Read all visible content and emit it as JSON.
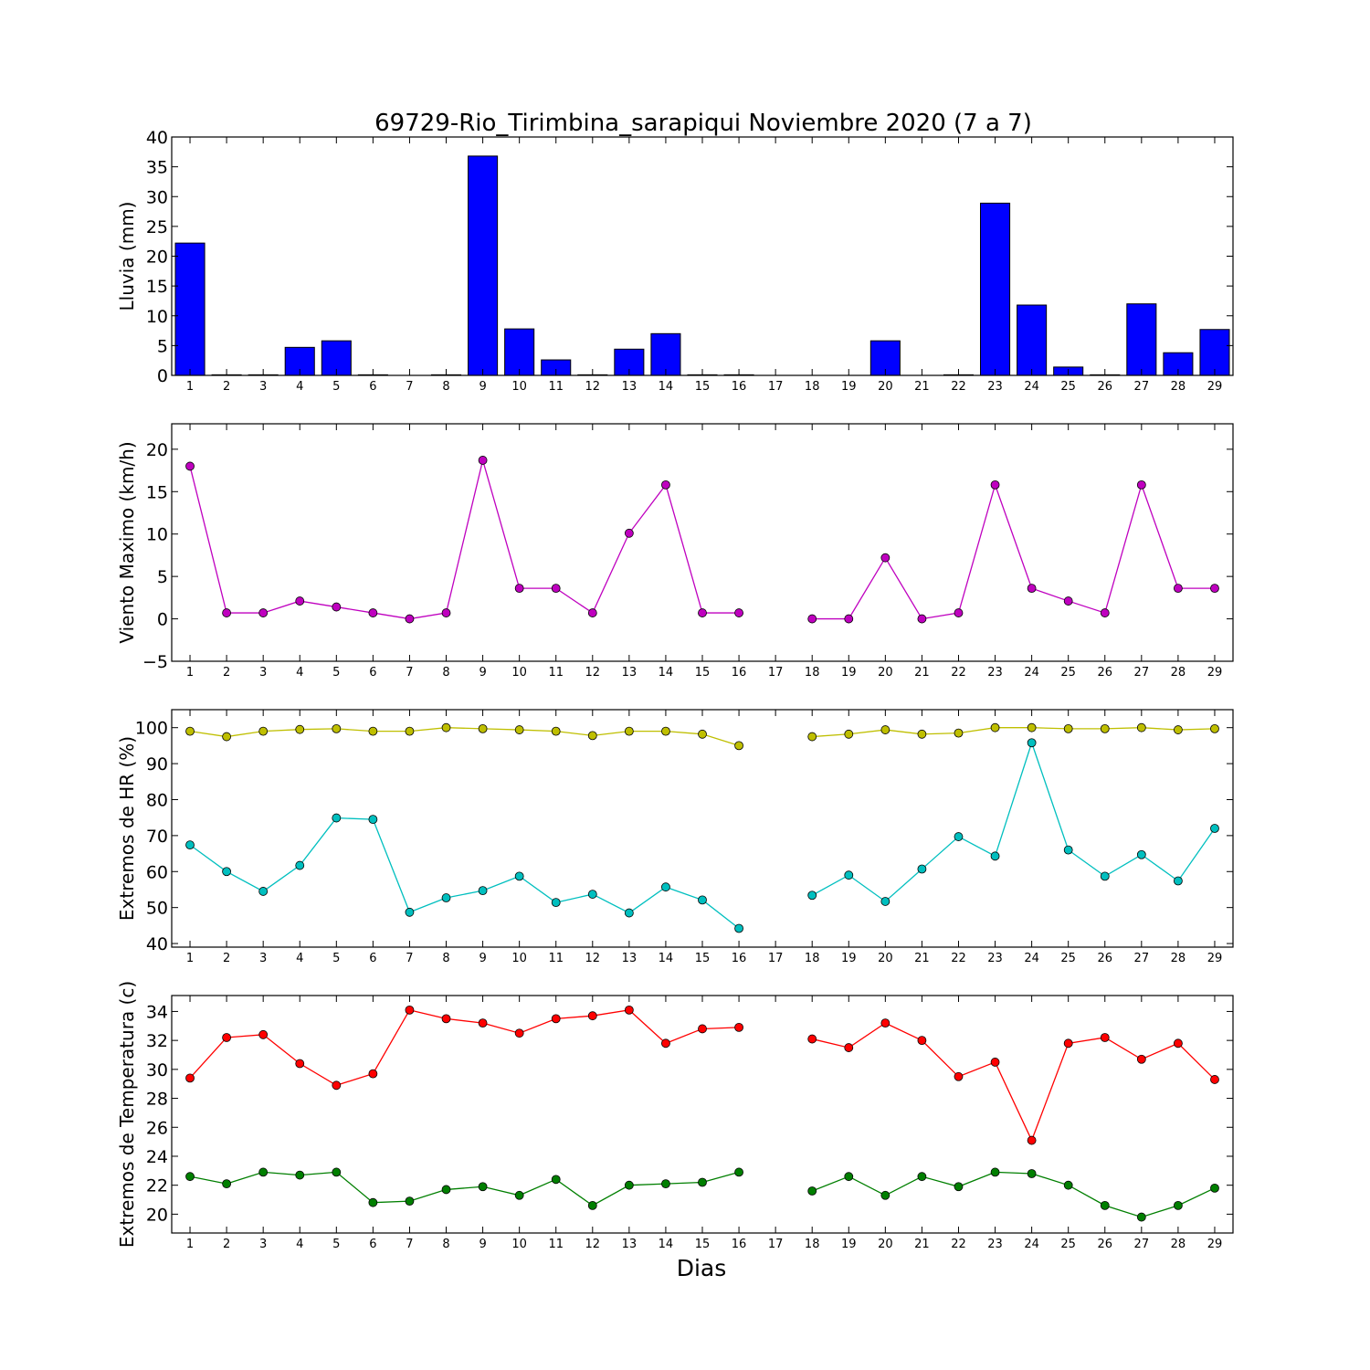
{
  "chart_data": {
    "type": "multi-panel",
    "title": "69729-Rio_Tirimbina_sarapiqui Noviembre 2020  (7 a 7)",
    "xlabel": "Dias",
    "x_categories": [
      1,
      2,
      3,
      4,
      5,
      6,
      7,
      8,
      9,
      10,
      11,
      12,
      13,
      14,
      15,
      16,
      17,
      18,
      19,
      20,
      21,
      22,
      23,
      24,
      25,
      26,
      27,
      28,
      29
    ],
    "panels": [
      {
        "type": "bar",
        "ylabel": "Lluvia (mm)",
        "ylim": [
          0,
          40
        ],
        "yticks": [
          0,
          5,
          10,
          15,
          20,
          25,
          30,
          35,
          40
        ],
        "grid": false,
        "series": [
          {
            "color": "#0000ff",
            "values": [
              22.2,
              0.1,
              0.1,
              4.7,
              5.8,
              0.1,
              0,
              0.1,
              36.8,
              7.8,
              2.6,
              0.1,
              4.4,
              7.0,
              0.1,
              0.1,
              0,
              0,
              0,
              5.8,
              0,
              0.1,
              28.9,
              11.8,
              1.4,
              0.1,
              12.0,
              3.8,
              7.7
            ]
          }
        ]
      },
      {
        "type": "line",
        "ylabel": "Viento Maximo (km/h)",
        "ylim": [
          -5,
          23
        ],
        "yticks": [
          -5,
          0,
          5,
          10,
          15,
          20
        ],
        "grid": false,
        "series": [
          {
            "color": "#bf00bf",
            "values": [
              18.0,
              0.7,
              0.7,
              2.1,
              1.4,
              0.7,
              0,
              0.7,
              18.7,
              3.6,
              3.6,
              0.7,
              10.1,
              15.8,
              0.7,
              0.7,
              null,
              0,
              0,
              7.2,
              0,
              0.7,
              15.8,
              3.6,
              2.1,
              0.7,
              15.8,
              3.6,
              3.6
            ]
          }
        ]
      },
      {
        "type": "line",
        "ylabel": "Extremos de HR (%)",
        "ylim": [
          39,
          105
        ],
        "yticks": [
          40,
          50,
          60,
          70,
          80,
          90,
          100
        ],
        "grid": false,
        "series": [
          {
            "color": "#bfbf00",
            "values": [
              99,
              97.5,
              99,
              99.5,
              99.7,
              99,
              99,
              100,
              99.7,
              99.4,
              99,
              97.8,
              99,
              99,
              98.2,
              95,
              null,
              97.5,
              98.2,
              99.4,
              98.2,
              98.5,
              100,
              100,
              99.7,
              99.7,
              100,
              99.4,
              99.7
            ]
          },
          {
            "color": "#00bfbf",
            "values": [
              67.4,
              60,
              54.5,
              61.7,
              74.9,
              74.5,
              48.7,
              52.7,
              54.7,
              58.7,
              51.4,
              53.7,
              48.5,
              55.7,
              52.1,
              44.2,
              null,
              53.4,
              59,
              51.7,
              60.7,
              69.7,
              64.3,
              95.8,
              66,
              58.7,
              64.7,
              57.4,
              72
            ]
          }
        ]
      },
      {
        "type": "line",
        "ylabel": "Extremos de Temperatura (c)",
        "ylim": [
          18.7,
          35.1
        ],
        "yticks": [
          20,
          22,
          24,
          26,
          28,
          30,
          32,
          34
        ],
        "grid": false,
        "series": [
          {
            "color": "#ff0000",
            "values": [
              29.4,
              32.2,
              32.4,
              30.4,
              28.9,
              29.7,
              34.1,
              33.5,
              33.2,
              32.5,
              33.5,
              33.7,
              34.1,
              31.8,
              32.8,
              32.9,
              null,
              32.1,
              31.5,
              33.2,
              32.0,
              29.5,
              30.5,
              25.1,
              31.8,
              32.2,
              30.7,
              31.8,
              29.3
            ]
          },
          {
            "color": "#007f00",
            "values": [
              22.6,
              22.1,
              22.9,
              22.7,
              22.9,
              20.8,
              20.9,
              21.7,
              21.9,
              21.3,
              22.4,
              20.6,
              22.0,
              22.1,
              22.2,
              22.9,
              null,
              21.6,
              22.6,
              21.3,
              22.6,
              21.9,
              22.9,
              22.8,
              22.0,
              20.6,
              19.8,
              20.6,
              21.8
            ]
          }
        ]
      }
    ]
  }
}
